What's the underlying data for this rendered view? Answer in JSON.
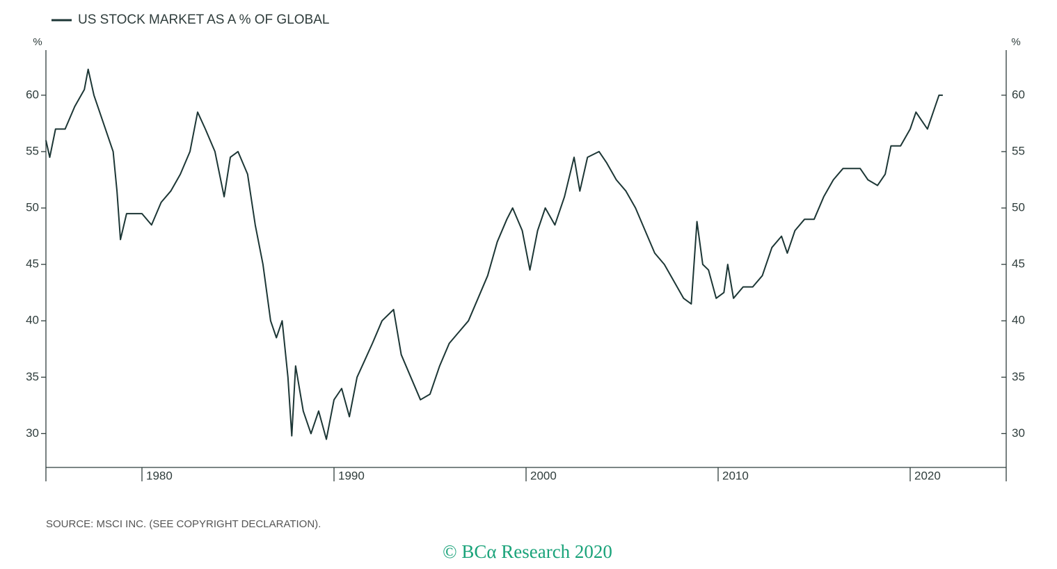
{
  "chart_data": {
    "type": "line",
    "legend_label": "US STOCK MARKET AS A % OF GLOBAL",
    "y_unit": "%",
    "y2_unit": "%",
    "source": "SOURCE: MSCI INC. (SEE COPYRIGHT DECLARATION).",
    "footer": "© BCα Research 2020",
    "xlim": [
      1975,
      2025
    ],
    "xticks": [
      1980,
      1990,
      2000,
      2010,
      2020
    ],
    "ylim": [
      27,
      64
    ],
    "yticks": [
      30,
      35,
      40,
      45,
      50,
      55,
      60
    ],
    "y2lim": [
      27,
      64
    ],
    "y2ticks": [
      30,
      35,
      40,
      45,
      50,
      55,
      60
    ],
    "series": [
      {
        "name": "US STOCK MARKET AS A % OF GLOBAL",
        "color": "#1c3635",
        "x": [
          1975.0,
          1975.2,
          1975.5,
          1976.0,
          1976.5,
          1977.0,
          1977.2,
          1977.5,
          1978.0,
          1978.5,
          1978.7,
          1978.88,
          1979.2,
          1980.0,
          1980.5,
          1981.0,
          1981.5,
          1982.0,
          1982.5,
          1982.9,
          1983.3,
          1983.8,
          1984.28,
          1984.6,
          1985.0,
          1985.5,
          1985.9,
          1986.3,
          1986.7,
          1987.0,
          1987.3,
          1987.6,
          1987.8,
          1988.0,
          1988.4,
          1988.8,
          1989.2,
          1989.6,
          1990.0,
          1990.4,
          1990.8,
          1991.2,
          1991.6,
          1992.0,
          1992.5,
          1993.1,
          1993.5,
          1994.0,
          1994.5,
          1995.0,
          1995.5,
          1996.0,
          1996.5,
          1997.0,
          1997.5,
          1998.0,
          1998.5,
          1999.0,
          1999.3,
          1999.8,
          2000.2,
          2000.6,
          2001.0,
          2001.5,
          2002.0,
          2002.5,
          2002.8,
          2003.2,
          2003.8,
          2004.2,
          2004.7,
          2005.2,
          2005.7,
          2006.2,
          2006.7,
          2007.2,
          2007.7,
          2008.2,
          2008.6,
          2008.9,
          2009.2,
          2009.5,
          2009.9,
          2010.3,
          2010.5,
          2010.8,
          2011.3,
          2011.8,
          2012.3,
          2012.8,
          2013.3,
          2013.6,
          2014.0,
          2014.5,
          2015.0,
          2015.5,
          2016.0,
          2016.5,
          2017.0,
          2017.4,
          2017.8,
          2018.3,
          2018.7,
          2019.0,
          2019.5,
          2020.0,
          2020.3,
          2020.7,
          2020.9,
          2021.2,
          2021.5,
          2021.7
        ],
        "values": [
          56,
          54.5,
          57,
          57,
          59,
          60.5,
          62.3,
          60,
          57.5,
          55,
          51.5,
          47.2,
          49.5,
          49.5,
          48.5,
          50.5,
          51.5,
          53,
          55,
          58.5,
          57,
          55,
          51,
          54.5,
          55,
          53,
          48.5,
          45,
          40,
          38.5,
          40,
          35,
          29.8,
          36,
          32,
          30,
          32,
          29.5,
          33,
          34,
          31.5,
          35,
          36.5,
          38,
          40,
          41,
          37,
          35,
          33,
          33.5,
          36,
          38,
          39,
          40,
          42,
          44,
          47,
          49,
          50,
          48,
          44.5,
          48,
          50,
          48.5,
          51,
          54.5,
          51.5,
          54.5,
          55,
          54,
          52.5,
          51.5,
          50,
          48,
          46,
          45,
          43.5,
          42,
          41.5,
          48.8,
          45,
          44.5,
          42,
          42.5,
          45,
          42,
          43,
          43,
          44,
          46.5,
          47.5,
          46,
          48,
          49,
          49,
          51,
          52.5,
          53.5,
          53.5,
          53.5,
          52.5,
          52,
          53,
          55.5,
          55.5,
          57,
          58.5,
          57.5,
          57,
          58.5,
          60,
          60
        ]
      }
    ]
  }
}
